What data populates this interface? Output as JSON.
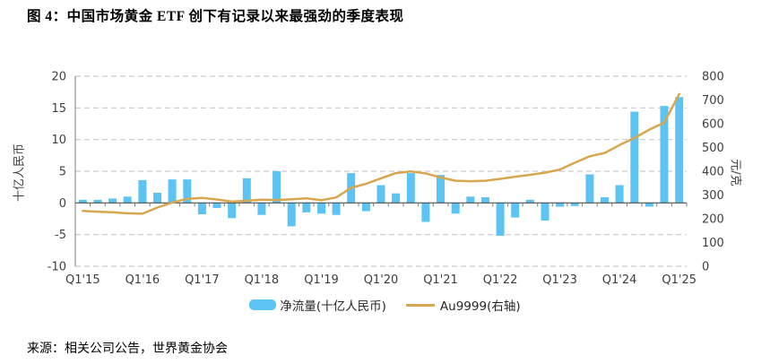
{
  "title": "图 4：中国市场黄金 ETF 创下有记录以来最强劲的季度表现",
  "source": "来源：相关公司公告，世界黄金协会",
  "colors": {
    "bar": "#5CC3F2",
    "line": "#D8A64F",
    "grid": "#C9C9C9",
    "axis": "#595959",
    "tick_text": "#404040"
  },
  "chart_data": {
    "type": "bar+line",
    "title": "图 4：中国市场黄金 ETF 创下有记录以来最强劲的季度表现",
    "categories": [
      "Q1'15",
      "Q2'15",
      "Q3'15",
      "Q4'15",
      "Q1'16",
      "Q2'16",
      "Q3'16",
      "Q4'16",
      "Q1'17",
      "Q2'17",
      "Q3'17",
      "Q4'17",
      "Q1'18",
      "Q2'18",
      "Q3'18",
      "Q4'18",
      "Q1'19",
      "Q2'19",
      "Q3'19",
      "Q4'19",
      "Q1'20",
      "Q2'20",
      "Q3'20",
      "Q4'20",
      "Q1'21",
      "Q2'21",
      "Q3'21",
      "Q4'21",
      "Q1'22",
      "Q2'22",
      "Q3'22",
      "Q4'22",
      "Q1'23",
      "Q2'23",
      "Q3'23",
      "Q4'23",
      "Q1'24",
      "Q2'24",
      "Q3'24",
      "Q4'24",
      "Q1'25"
    ],
    "x_axis_labels": [
      "Q1'15",
      "Q1'16",
      "Q1'17",
      "Q1'18",
      "Q1'19",
      "Q1'20",
      "Q1'21",
      "Q1'22",
      "Q1'23",
      "Q1'24",
      "Q1'25"
    ],
    "series": [
      {
        "name": "净流量(十亿人民币)",
        "type": "bar",
        "axis": "left",
        "color": "#5CC3F2",
        "values": [
          0.5,
          0.5,
          0.7,
          1.0,
          3.6,
          1.6,
          3.7,
          3.7,
          -1.8,
          -0.8,
          -2.4,
          3.9,
          -1.9,
          5.0,
          -3.7,
          -1.5,
          -1.7,
          -1.9,
          4.7,
          -1.3,
          2.8,
          1.5,
          4.7,
          -3.0,
          4.4,
          -1.7,
          1.0,
          0.9,
          -5.2,
          -2.3,
          0.5,
          -2.8,
          -0.6,
          -0.5,
          4.5,
          0.9,
          2.8,
          14.4,
          -0.6,
          15.3,
          16.7
        ]
      },
      {
        "name": "Au9999(右轴)",
        "type": "line",
        "axis": "right",
        "color": "#D8A64F",
        "values": [
          233,
          230,
          227,
          223,
          221,
          247,
          268,
          284,
          288,
          281,
          272,
          276,
          280,
          279,
          282,
          286,
          278,
          290,
          330,
          347,
          370,
          392,
          399,
          391,
          374,
          360,
          358,
          360,
          368,
          377,
          385,
          394,
          407,
          436,
          463,
          477,
          510,
          540,
          575,
          605,
          725
        ]
      }
    ],
    "left_axis": {
      "label": "十亿人民币",
      "min": -10,
      "max": 20,
      "ticks": [
        20,
        15,
        10,
        5,
        0,
        -5,
        -10
      ]
    },
    "right_axis": {
      "label": "元/克",
      "min": 0,
      "max": 800,
      "ticks": [
        800,
        700,
        600,
        500,
        400,
        300,
        200,
        100,
        0
      ]
    },
    "grid": {
      "horizontal": "dashed",
      "legend_position": "bottom"
    }
  }
}
